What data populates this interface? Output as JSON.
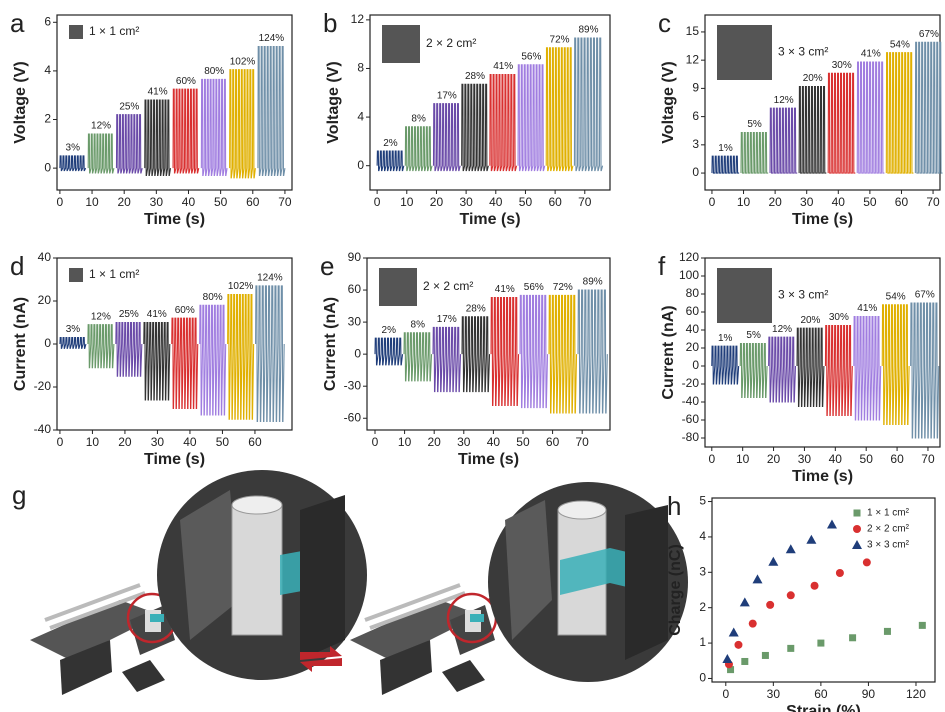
{
  "chart_data": [
    {
      "type": "signal",
      "label": "a",
      "x_label": "Time (s)",
      "y_label": "Voltage (V)",
      "legend_text": "1 × 1 cm²",
      "xlim": [
        -0.9,
        72.2
      ],
      "xticks": [
        0,
        10,
        20,
        30,
        40,
        50,
        60,
        70
      ],
      "ylim": [
        -0.9,
        6.3
      ],
      "yticks": [
        0,
        2,
        4,
        6
      ],
      "series": [
        {
          "name": "3%",
          "color": "#1f3d7a",
          "x": [
            0,
            8
          ],
          "values": [
            0.5,
            -0.1
          ]
        },
        {
          "name": "12%",
          "color": "#6a9a6a",
          "x": [
            8.8,
            16.8
          ],
          "values": [
            1.4,
            -0.2
          ]
        },
        {
          "name": "25%",
          "color": "#6a4aa8",
          "x": [
            17.6,
            25.6
          ],
          "values": [
            2.2,
            -0.2
          ]
        },
        {
          "name": "41%",
          "color": "#333333",
          "x": [
            26.4,
            34.4
          ],
          "values": [
            2.8,
            -0.3
          ]
        },
        {
          "name": "60%",
          "color": "#d93030",
          "x": [
            35.2,
            43.2
          ],
          "values": [
            3.25,
            -0.2
          ]
        },
        {
          "name": "80%",
          "color": "#a07de0",
          "x": [
            44,
            52
          ],
          "values": [
            3.65,
            -0.3
          ]
        },
        {
          "name": "102%",
          "color": "#e0b000",
          "x": [
            52.8,
            60.8
          ],
          "values": [
            4.05,
            -0.4
          ]
        },
        {
          "name": "124%",
          "color": "#6f8fa8",
          "x": [
            61.6,
            70
          ],
          "values": [
            5.0,
            -0.3
          ]
        }
      ]
    },
    {
      "type": "signal",
      "label": "b",
      "x_label": "Time (s)",
      "y_label": "Voltage (V)",
      "legend_text": "2 × 2 cm²",
      "xlim": [
        -2.4,
        78.5
      ],
      "xticks": [
        0,
        10,
        20,
        30,
        40,
        50,
        60,
        70
      ],
      "ylim": [
        -2,
        12.4
      ],
      "yticks": [
        0,
        4,
        8,
        12
      ],
      "series": [
        {
          "name": "2%",
          "color": "#1f3d7a",
          "x": [
            0,
            9
          ],
          "values": [
            1.2,
            -0.4
          ]
        },
        {
          "name": "8%",
          "color": "#6a9a6a",
          "x": [
            9.5,
            18.5
          ],
          "values": [
            3.2,
            -0.4
          ]
        },
        {
          "name": "17%",
          "color": "#6a4aa8",
          "x": [
            19,
            28
          ],
          "values": [
            5.1,
            -0.4
          ]
        },
        {
          "name": "28%",
          "color": "#333333",
          "x": [
            28.5,
            37.5
          ],
          "values": [
            6.7,
            -0.4
          ]
        },
        {
          "name": "41%",
          "color": "#d93030",
          "x": [
            38,
            47
          ],
          "values": [
            7.5,
            -0.4
          ]
        },
        {
          "name": "56%",
          "color": "#a07de0",
          "x": [
            47.5,
            56.5
          ],
          "values": [
            8.3,
            -0.4
          ]
        },
        {
          "name": "72%",
          "color": "#e0b000",
          "x": [
            57,
            66
          ],
          "values": [
            9.7,
            -0.4
          ]
        },
        {
          "name": "89%",
          "color": "#6f8fa8",
          "x": [
            66.5,
            76
          ],
          "values": [
            10.5,
            -0.4
          ]
        }
      ]
    },
    {
      "type": "signal",
      "label": "c",
      "x_label": "Time (s)",
      "y_label": "Voltage (V)",
      "legend_text": "3 × 3 cm²",
      "xlim": [
        -2.2,
        72.2
      ],
      "xticks": [
        0,
        10,
        20,
        30,
        40,
        50,
        60,
        70
      ],
      "ylim": [
        -1.8,
        16.8
      ],
      "yticks": [
        0,
        3,
        6,
        9,
        12,
        15
      ],
      "series": [
        {
          "name": "1%",
          "color": "#1f3d7a",
          "x": [
            0,
            8.6
          ],
          "values": [
            1.8,
            0
          ]
        },
        {
          "name": "5%",
          "color": "#6a9a6a",
          "x": [
            9.2,
            17.8
          ],
          "values": [
            4.3,
            0
          ]
        },
        {
          "name": "12%",
          "color": "#6a4aa8",
          "x": [
            18.4,
            27
          ],
          "values": [
            6.9,
            0
          ]
        },
        {
          "name": "20%",
          "color": "#333333",
          "x": [
            27.6,
            36.2
          ],
          "values": [
            9.2,
            0
          ]
        },
        {
          "name": "30%",
          "color": "#d93030",
          "x": [
            36.8,
            45.4
          ],
          "values": [
            10.6,
            0
          ]
        },
        {
          "name": "41%",
          "color": "#a07de0",
          "x": [
            46,
            54.6
          ],
          "values": [
            11.8,
            0
          ]
        },
        {
          "name": "54%",
          "color": "#e0b000",
          "x": [
            55.2,
            63.8
          ],
          "values": [
            12.8,
            0
          ]
        },
        {
          "name": "67%",
          "color": "#6f8fa8",
          "x": [
            64.4,
            73
          ],
          "values": [
            13.9,
            0
          ]
        }
      ]
    },
    {
      "type": "signal",
      "label": "d",
      "x_label": "Time (s)",
      "y_label": "Current (nA)",
      "legend_text": "1 × 1 cm²",
      "xlim": [
        -0.9,
        71.4
      ],
      "xticks": [
        0,
        10,
        20,
        30,
        40,
        50,
        60
      ],
      "ylim": [
        -40,
        40
      ],
      "yticks": [
        -40,
        -20,
        0,
        20,
        40
      ],
      "series": [
        {
          "name": "3%",
          "color": "#1f3d7a",
          "x": [
            0,
            8
          ],
          "values": [
            3,
            -2
          ]
        },
        {
          "name": "12%",
          "color": "#6a9a6a",
          "x": [
            8.6,
            16.6
          ],
          "values": [
            9,
            -11
          ]
        },
        {
          "name": "25%",
          "color": "#6a4aa8",
          "x": [
            17.2,
            25.2
          ],
          "values": [
            10,
            -15
          ]
        },
        {
          "name": "41%",
          "color": "#333333",
          "x": [
            25.8,
            33.8
          ],
          "values": [
            10,
            -26
          ]
        },
        {
          "name": "60%",
          "color": "#d93030",
          "x": [
            34.4,
            42.4
          ],
          "values": [
            12,
            -30
          ]
        },
        {
          "name": "80%",
          "color": "#a07de0",
          "x": [
            43,
            51
          ],
          "values": [
            18,
            -33
          ]
        },
        {
          "name": "102%",
          "color": "#e0b000",
          "x": [
            51.6,
            59.6
          ],
          "values": [
            23,
            -35
          ]
        },
        {
          "name": "124%",
          "color": "#6f8fa8",
          "x": [
            60.2,
            69
          ],
          "values": [
            27,
            -36
          ]
        }
      ]
    },
    {
      "type": "signal",
      "label": "e",
      "x_label": "Time (s)",
      "y_label": "Current (nA)",
      "legend_text": "2 × 2 cm²",
      "xlim": [
        -2.7,
        79.4
      ],
      "xticks": [
        0,
        10,
        20,
        30,
        40,
        50,
        60,
        70
      ],
      "ylim": [
        -71,
        90
      ],
      "yticks": [
        -60,
        -30,
        0,
        30,
        60,
        90
      ],
      "series": [
        {
          "name": "2%",
          "color": "#1f3d7a",
          "x": [
            0,
            9.3
          ],
          "values": [
            15,
            -10
          ]
        },
        {
          "name": "8%",
          "color": "#6a9a6a",
          "x": [
            9.8,
            19.1
          ],
          "values": [
            20,
            -25
          ]
        },
        {
          "name": "17%",
          "color": "#6a4aa8",
          "x": [
            19.6,
            28.9
          ],
          "values": [
            25,
            -35
          ]
        },
        {
          "name": "28%",
          "color": "#333333",
          "x": [
            29.4,
            38.7
          ],
          "values": [
            35,
            -35
          ]
        },
        {
          "name": "41%",
          "color": "#d93030",
          "x": [
            39.2,
            48.5
          ],
          "values": [
            53,
            -48
          ]
        },
        {
          "name": "56%",
          "color": "#a07de0",
          "x": [
            49,
            58.3
          ],
          "values": [
            55,
            -50
          ]
        },
        {
          "name": "72%",
          "color": "#e0b000",
          "x": [
            58.8,
            68.1
          ],
          "values": [
            55,
            -55
          ]
        },
        {
          "name": "89%",
          "color": "#6f8fa8",
          "x": [
            68.6,
            78.5
          ],
          "values": [
            60,
            -55
          ]
        }
      ]
    },
    {
      "type": "signal",
      "label": "f",
      "x_label": "Time (s)",
      "y_label": "Current (nA)",
      "legend_text": "3 × 3 cm²",
      "xlim": [
        -2.2,
        73.9
      ],
      "xticks": [
        0,
        10,
        20,
        30,
        40,
        50,
        60,
        70
      ],
      "ylim": [
        -90,
        120
      ],
      "yticks": [
        -80,
        -60,
        -40,
        -20,
        0,
        20,
        40,
        60,
        80,
        100,
        120
      ],
      "series": [
        {
          "name": "1%",
          "color": "#1f3d7a",
          "x": [
            0,
            8.7
          ],
          "values": [
            22,
            -20
          ]
        },
        {
          "name": "5%",
          "color": "#6a9a6a",
          "x": [
            9.2,
            17.9
          ],
          "values": [
            25,
            -35
          ]
        },
        {
          "name": "12%",
          "color": "#6a4aa8",
          "x": [
            18.4,
            27.1
          ],
          "values": [
            32,
            -40
          ]
        },
        {
          "name": "20%",
          "color": "#333333",
          "x": [
            27.6,
            36.3
          ],
          "values": [
            42,
            -45
          ]
        },
        {
          "name": "30%",
          "color": "#d93030",
          "x": [
            36.8,
            45.5
          ],
          "values": [
            45,
            -55
          ]
        },
        {
          "name": "41%",
          "color": "#a07de0",
          "x": [
            46,
            54.7
          ],
          "values": [
            55,
            -60
          ]
        },
        {
          "name": "54%",
          "color": "#e0b000",
          "x": [
            55.2,
            63.9
          ],
          "values": [
            68,
            -65
          ]
        },
        {
          "name": "67%",
          "color": "#6f8fa8",
          "x": [
            64.4,
            73.5
          ],
          "values": [
            70,
            -80
          ]
        }
      ]
    },
    {
      "type": "scatter",
      "label": "h",
      "x_label": "Strain (%)",
      "y_label": "Charge (nC)",
      "xlim": [
        -8.7,
        132
      ],
      "xticks": [
        0,
        30,
        60,
        90,
        120
      ],
      "ylim": [
        -0.1,
        5.1
      ],
      "yticks": [
        0,
        1,
        2,
        3,
        4,
        5
      ],
      "series": [
        {
          "name": "1 × 1 cm²",
          "color": "#6a9a6a",
          "marker": "square",
          "x": [
            3,
            12,
            25,
            41,
            60,
            80,
            102,
            124
          ],
          "values": [
            0.25,
            0.48,
            0.65,
            0.85,
            1.0,
            1.15,
            1.33,
            1.5
          ]
        },
        {
          "name": "2 × 2 cm²",
          "color": "#d93030",
          "marker": "circle",
          "x": [
            2,
            8,
            17,
            28,
            41,
            56,
            72,
            89
          ],
          "values": [
            0.4,
            0.95,
            1.55,
            2.08,
            2.35,
            2.62,
            2.98,
            3.28
          ]
        },
        {
          "name": "3 × 3 cm²",
          "color": "#1f3d7a",
          "marker": "triangle",
          "x": [
            1,
            5,
            12,
            20,
            30,
            41,
            54,
            67
          ],
          "values": [
            0.55,
            1.3,
            2.15,
            2.8,
            3.3,
            3.65,
            3.92,
            4.35
          ]
        }
      ]
    }
  ],
  "diagram": {
    "label": "g"
  }
}
